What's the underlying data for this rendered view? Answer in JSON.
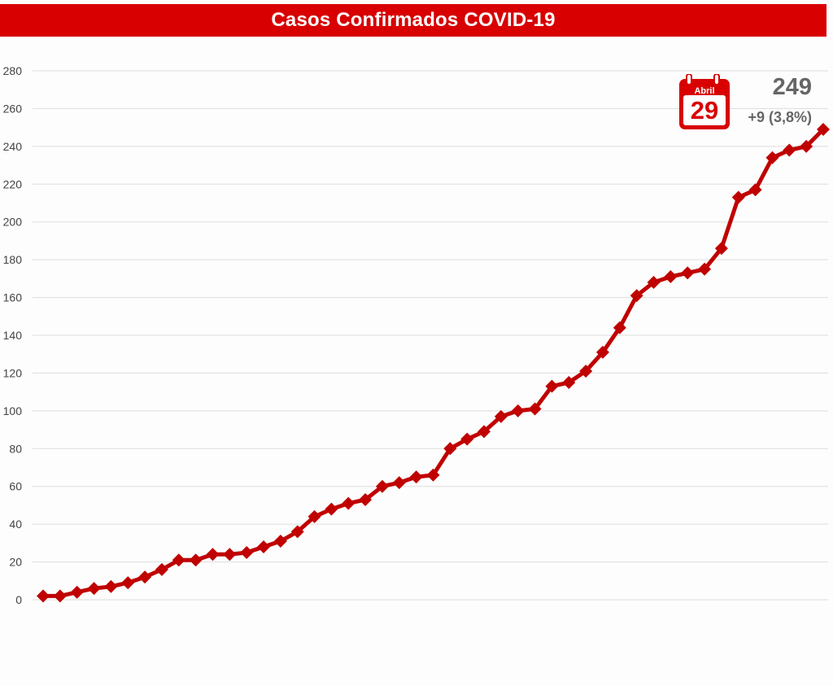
{
  "header": {
    "title": "Casos Confirmados COVID-19"
  },
  "badge": {
    "month": "Abril",
    "day": "29",
    "total": "249",
    "change": "+9 (3,8%)"
  },
  "colors": {
    "accent": "#d80000",
    "line": "#c00000",
    "grid": "#dddddd",
    "text": "#444444"
  },
  "icons": {
    "calendar": "calendar-icon"
  },
  "chart_data": {
    "type": "line",
    "title": "Casos Confirmados COVID-19",
    "xlabel": "",
    "ylabel": "",
    "ylim": [
      0,
      280
    ],
    "yticks": [
      0,
      20,
      40,
      60,
      80,
      100,
      120,
      140,
      160,
      180,
      200,
      220,
      240,
      260,
      280
    ],
    "grid": true,
    "legend": "none",
    "series": [
      {
        "values": [
          2,
          2,
          4,
          6,
          7,
          9,
          12,
          16,
          21,
          21,
          24,
          24,
          25,
          28,
          31,
          36,
          44,
          48,
          51,
          53,
          60,
          62,
          65,
          66,
          80,
          85,
          89,
          97,
          100,
          101,
          113,
          115,
          121,
          131,
          144,
          161,
          168,
          171,
          173,
          175,
          186,
          213,
          217,
          234,
          238,
          240,
          249
        ]
      }
    ]
  }
}
